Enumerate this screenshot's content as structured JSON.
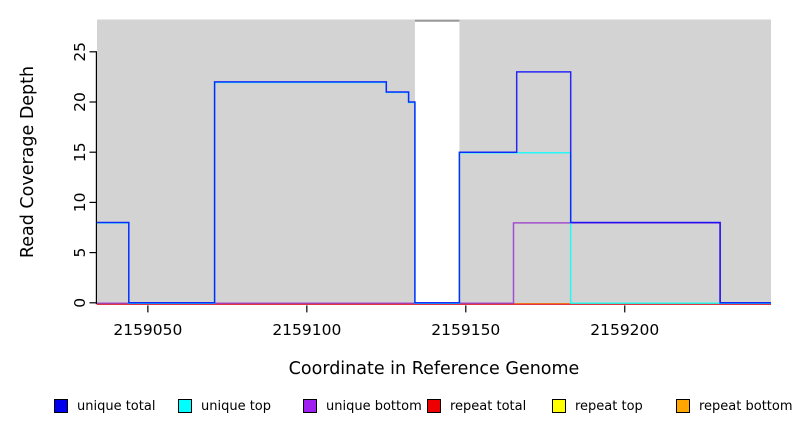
{
  "page": {
    "background": "#FFFFFF"
  },
  "chart_data": {
    "type": "line",
    "subtype": "step-coverage",
    "title": "",
    "xlabel": "Coordinate in Reference Genome",
    "ylabel": "Read Coverage Depth",
    "xlim": [
      2159034,
      2159246
    ],
    "ylim": [
      0,
      28.2
    ],
    "x_ticks": [
      2159050,
      2159100,
      2159150,
      2159200
    ],
    "y_ticks": [
      0,
      5,
      10,
      15,
      20,
      25
    ],
    "grid": "off",
    "plot_background": "#D3D3D3",
    "masked_region": {
      "start": 2159134,
      "end": 2159148,
      "fill": "#FFFFFF",
      "border_color": "#999999",
      "top_depth": 28
    },
    "series": [
      {
        "id": "unique_total",
        "name": "unique total",
        "color": "#0000FF",
        "steps": [
          [
            2159034,
            8
          ],
          [
            2159044,
            0
          ],
          [
            2159071,
            22
          ],
          [
            2159125,
            21
          ],
          [
            2159132,
            20
          ],
          [
            2159134,
            0
          ],
          [
            2159148,
            15
          ],
          [
            2159166,
            23
          ],
          [
            2159183,
            8
          ],
          [
            2159230,
            0
          ]
        ],
        "end": 2159246
      },
      {
        "id": "unique_top",
        "name": "unique top",
        "color": "#00FFFF",
        "steps": [
          [
            2159034,
            8
          ],
          [
            2159044,
            0
          ],
          [
            2159071,
            22
          ],
          [
            2159125,
            21
          ],
          [
            2159132,
            20
          ],
          [
            2159134,
            0
          ],
          [
            2159148,
            15
          ],
          [
            2159183,
            0
          ]
        ],
        "end": 2159246
      },
      {
        "id": "unique_bottom",
        "name": "unique bottom",
        "color": "#9932CC",
        "steps": [
          [
            2159034,
            0
          ],
          [
            2159165,
            8
          ],
          [
            2159230,
            0
          ]
        ],
        "end": 2159246
      },
      {
        "id": "repeat_total",
        "name": "repeat total",
        "color": "#DC143C",
        "steps": [
          [
            2159034,
            0
          ]
        ],
        "end": 2159246
      },
      {
        "id": "repeat_top",
        "name": "repeat top",
        "color": "#FFFF00",
        "steps": [
          [
            2159034,
            0
          ]
        ],
        "end": 2159246
      },
      {
        "id": "repeat_bottom",
        "name": "repeat bottom",
        "color": "#FFA500",
        "steps": [
          [
            2159034,
            0
          ]
        ],
        "end": 2159246
      }
    ],
    "legend": [
      {
        "label": "unique total",
        "color": "#0000EE"
      },
      {
        "label": "unique top",
        "color": "#00FFFF"
      },
      {
        "label": "unique bottom",
        "color": "#A020F0"
      },
      {
        "label": "repeat total",
        "color": "#EE0000"
      },
      {
        "label": "repeat top",
        "color": "#FFFF00"
      },
      {
        "label": "repeat bottom",
        "color": "#FFA500"
      }
    ],
    "legend_position": "bottom"
  }
}
